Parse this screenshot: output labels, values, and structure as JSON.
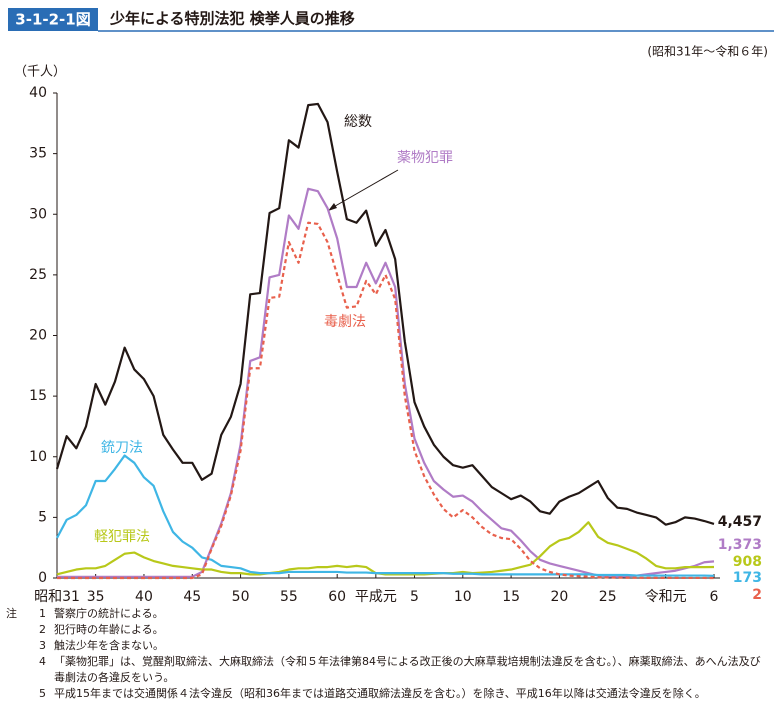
{
  "header": {
    "figure_no": "3-1-2-1図",
    "title": "少年による特別法犯 検挙人員の推移",
    "period": "(昭和31年～令和６年)"
  },
  "chart_data": {
    "type": "line",
    "y_unit": "（千人）",
    "categories": [
      "昭和31",
      null,
      null,
      null,
      "35",
      null,
      null,
      null,
      null,
      "40",
      null,
      null,
      null,
      null,
      "45",
      null,
      null,
      null,
      null,
      "50",
      null,
      null,
      null,
      null,
      "55",
      null,
      null,
      null,
      null,
      "60",
      null,
      null,
      null,
      "平成元",
      null,
      null,
      null,
      "5",
      null,
      null,
      null,
      null,
      "10",
      null,
      null,
      null,
      null,
      "15",
      null,
      null,
      null,
      null,
      "20",
      null,
      null,
      null,
      null,
      "25",
      null,
      null,
      null,
      null,
      null,
      "令和元",
      null,
      null,
      null,
      null,
      "6"
    ],
    "ylim": [
      0,
      40
    ],
    "yticks": [
      0,
      5,
      10,
      15,
      20,
      25,
      30,
      35,
      40
    ],
    "grid": false,
    "series": [
      {
        "name": "総数",
        "color": "#231815",
        "line_style": "solid",
        "values": [
          9.0,
          11.7,
          10.7,
          12.5,
          16.0,
          14.3,
          16.2,
          19.0,
          17.2,
          16.4,
          15.0,
          11.8,
          10.6,
          9.5,
          9.5,
          8.1,
          8.6,
          11.8,
          13.3,
          16.0,
          23.4,
          23.5,
          30.1,
          30.5,
          36.1,
          35.5,
          39.0,
          39.1,
          37.6,
          33.5,
          29.6,
          29.3,
          30.3,
          27.4,
          28.7,
          26.3,
          19.5,
          14.5,
          12.5,
          11.0,
          10.0,
          9.3,
          9.1,
          9.3,
          8.4,
          7.5,
          7.0,
          6.5,
          6.8,
          6.3,
          5.5,
          5.3,
          6.3,
          6.7,
          7.0,
          7.5,
          8.0,
          6.6,
          5.8,
          5.7,
          5.4,
          5.2,
          5.0,
          4.4,
          4.6,
          5.0,
          4.9,
          4.7,
          4.457
        ],
        "value_labels": [
          null,
          null,
          null,
          null,
          null,
          null,
          null,
          null,
          null,
          null,
          null,
          null,
          null,
          null,
          null,
          null,
          null,
          null,
          null,
          null,
          null,
          null,
          null,
          null,
          null,
          null,
          null,
          null,
          null,
          null,
          null,
          null,
          null,
          null,
          null,
          null,
          null,
          null,
          null,
          null,
          null,
          null,
          null,
          null,
          null,
          null,
          null,
          null,
          null,
          null,
          null,
          null,
          null,
          null,
          null,
          null,
          null,
          null,
          null,
          null,
          null,
          null,
          null,
          null,
          null,
          null,
          null,
          null,
          "4,457"
        ]
      },
      {
        "name": "薬物犯罪",
        "color": "#b07cc6",
        "line_style": "solid",
        "values": [
          0.1,
          0.1,
          0.1,
          0.1,
          0.1,
          0.1,
          0.1,
          0.1,
          0.1,
          0.1,
          0.1,
          0.1,
          0.1,
          0.1,
          0.1,
          0.5,
          2.5,
          4.5,
          7.0,
          11.0,
          17.9,
          18.2,
          24.8,
          25.0,
          29.9,
          28.8,
          32.1,
          31.9,
          30.5,
          28.0,
          24.0,
          24.0,
          26.0,
          24.3,
          26.0,
          24.0,
          16.0,
          11.5,
          9.5,
          8.0,
          7.3,
          6.7,
          6.8,
          6.3,
          5.5,
          4.8,
          4.1,
          3.9,
          3.1,
          2.2,
          1.5,
          1.2,
          1.0,
          0.8,
          0.6,
          0.4,
          0.2,
          0.15,
          0.1,
          0.15,
          0.2,
          0.3,
          0.4,
          0.5,
          0.6,
          0.8,
          1.0,
          1.3,
          1.373
        ],
        "value_labels": [
          null,
          null,
          null,
          null,
          null,
          null,
          null,
          null,
          null,
          null,
          null,
          null,
          null,
          null,
          null,
          null,
          null,
          null,
          null,
          null,
          null,
          null,
          null,
          null,
          null,
          null,
          null,
          null,
          null,
          null,
          null,
          null,
          null,
          null,
          null,
          null,
          null,
          null,
          null,
          null,
          null,
          null,
          null,
          null,
          null,
          null,
          null,
          null,
          null,
          null,
          null,
          null,
          null,
          null,
          null,
          null,
          null,
          null,
          null,
          null,
          null,
          null,
          null,
          null,
          null,
          null,
          null,
          null,
          "1,373"
        ]
      },
      {
        "name": "軽犯罪法",
        "color": "#b8c81a",
        "line_style": "solid",
        "values": [
          0.3,
          0.5,
          0.7,
          0.8,
          0.8,
          1.0,
          1.5,
          2.0,
          2.1,
          1.7,
          1.4,
          1.2,
          1.0,
          0.9,
          0.8,
          0.7,
          0.7,
          0.5,
          0.4,
          0.4,
          0.3,
          0.3,
          0.4,
          0.5,
          0.7,
          0.8,
          0.8,
          0.9,
          0.9,
          1.0,
          0.9,
          1.0,
          0.9,
          0.4,
          0.3,
          0.3,
          0.3,
          0.3,
          0.3,
          0.35,
          0.4,
          0.4,
          0.5,
          0.4,
          0.45,
          0.5,
          0.6,
          0.7,
          0.9,
          1.1,
          1.8,
          2.6,
          3.1,
          3.3,
          3.8,
          4.6,
          3.4,
          2.9,
          2.7,
          2.4,
          2.1,
          1.6,
          1.0,
          0.8,
          0.8,
          0.9,
          0.9,
          0.9,
          0.908
        ],
        "value_labels": [
          null,
          null,
          null,
          null,
          null,
          null,
          null,
          null,
          null,
          null,
          null,
          null,
          null,
          null,
          null,
          null,
          null,
          null,
          null,
          null,
          null,
          null,
          null,
          null,
          null,
          null,
          null,
          null,
          null,
          null,
          null,
          null,
          null,
          null,
          null,
          null,
          null,
          null,
          null,
          null,
          null,
          null,
          null,
          null,
          null,
          null,
          null,
          null,
          null,
          null,
          null,
          null,
          null,
          null,
          null,
          null,
          null,
          null,
          null,
          null,
          null,
          null,
          null,
          null,
          null,
          null,
          null,
          null,
          "908"
        ]
      },
      {
        "name": "銃刀法",
        "color": "#3fb6e5",
        "line_style": "solid",
        "values": [
          3.3,
          4.8,
          5.2,
          6.0,
          8.0,
          8.0,
          9.0,
          10.1,
          9.5,
          8.3,
          7.6,
          5.5,
          3.8,
          3.0,
          2.5,
          1.7,
          1.5,
          1.0,
          0.9,
          0.8,
          0.5,
          0.4,
          0.4,
          0.4,
          0.5,
          0.5,
          0.5,
          0.5,
          0.5,
          0.5,
          0.45,
          0.45,
          0.45,
          0.4,
          0.4,
          0.4,
          0.4,
          0.4,
          0.4,
          0.4,
          0.4,
          0.35,
          0.35,
          0.35,
          0.3,
          0.3,
          0.3,
          0.3,
          0.3,
          0.3,
          0.3,
          0.3,
          0.3,
          0.3,
          0.3,
          0.3,
          0.25,
          0.25,
          0.25,
          0.25,
          0.2,
          0.2,
          0.2,
          0.2,
          0.2,
          0.2,
          0.2,
          0.2,
          0.173
        ],
        "value_labels": [
          null,
          null,
          null,
          null,
          null,
          null,
          null,
          null,
          null,
          null,
          null,
          null,
          null,
          null,
          null,
          null,
          null,
          null,
          null,
          null,
          null,
          null,
          null,
          null,
          null,
          null,
          null,
          null,
          null,
          null,
          null,
          null,
          null,
          null,
          null,
          null,
          null,
          null,
          null,
          null,
          null,
          null,
          null,
          null,
          null,
          null,
          null,
          null,
          null,
          null,
          null,
          null,
          null,
          null,
          null,
          null,
          null,
          null,
          null,
          null,
          null,
          null,
          null,
          null,
          null,
          null,
          null,
          null,
          "173"
        ]
      },
      {
        "name": "毒劇法",
        "color": "#e8604c",
        "line_style": "dashed",
        "values": [
          0,
          0,
          0,
          0,
          0,
          0,
          0,
          0,
          0,
          0,
          0,
          0,
          0,
          0,
          0,
          0.3,
          2.4,
          4.3,
          6.8,
          10.5,
          17.3,
          17.3,
          23.1,
          23.2,
          27.7,
          26.0,
          29.3,
          29.2,
          27.7,
          25.0,
          22.3,
          22.4,
          24.5,
          23.4,
          25.0,
          23.0,
          15.0,
          10.5,
          8.4,
          6.9,
          5.7,
          5.0,
          5.6,
          5.0,
          4.2,
          3.6,
          3.3,
          3.2,
          2.4,
          1.4,
          0.8,
          0.5,
          0.3,
          0.2,
          0.15,
          0.1,
          0.06,
          0.04,
          0.03,
          0.02,
          0.02,
          0.01,
          0.01,
          0.01,
          0.01,
          0.005,
          0.004,
          0.003,
          0.002
        ],
        "value_labels": [
          null,
          null,
          null,
          null,
          null,
          null,
          null,
          null,
          null,
          null,
          null,
          null,
          null,
          null,
          null,
          null,
          null,
          null,
          null,
          null,
          null,
          null,
          null,
          null,
          null,
          null,
          null,
          null,
          null,
          null,
          null,
          null,
          null,
          null,
          null,
          null,
          null,
          null,
          null,
          null,
          null,
          null,
          null,
          null,
          null,
          null,
          null,
          null,
          null,
          null,
          null,
          null,
          null,
          null,
          null,
          null,
          null,
          null,
          null,
          null,
          null,
          null,
          null,
          null,
          null,
          null,
          null,
          null,
          "2"
        ]
      }
    ]
  },
  "notes": {
    "label": "注",
    "items": [
      {
        "no": "1",
        "text": "警察庁の統計による。"
      },
      {
        "no": "2",
        "text": "犯行時の年齢による。"
      },
      {
        "no": "3",
        "text": "触法少年を含まない。"
      },
      {
        "no": "4",
        "text": "「薬物犯罪」は、覚醒剤取締法、大麻取締法（令和５年法律第84号による改正後の大麻草栽培規制法違反を含む。）、麻薬取締法、あへん法及び毒劇法の各違反をいう。"
      },
      {
        "no": "5",
        "text": "平成15年までは交通関係４法令違反（昭和36年までは道路交通取締法違反を含む。）を除き、平成16年以降は交通法令違反を除く。"
      }
    ]
  }
}
